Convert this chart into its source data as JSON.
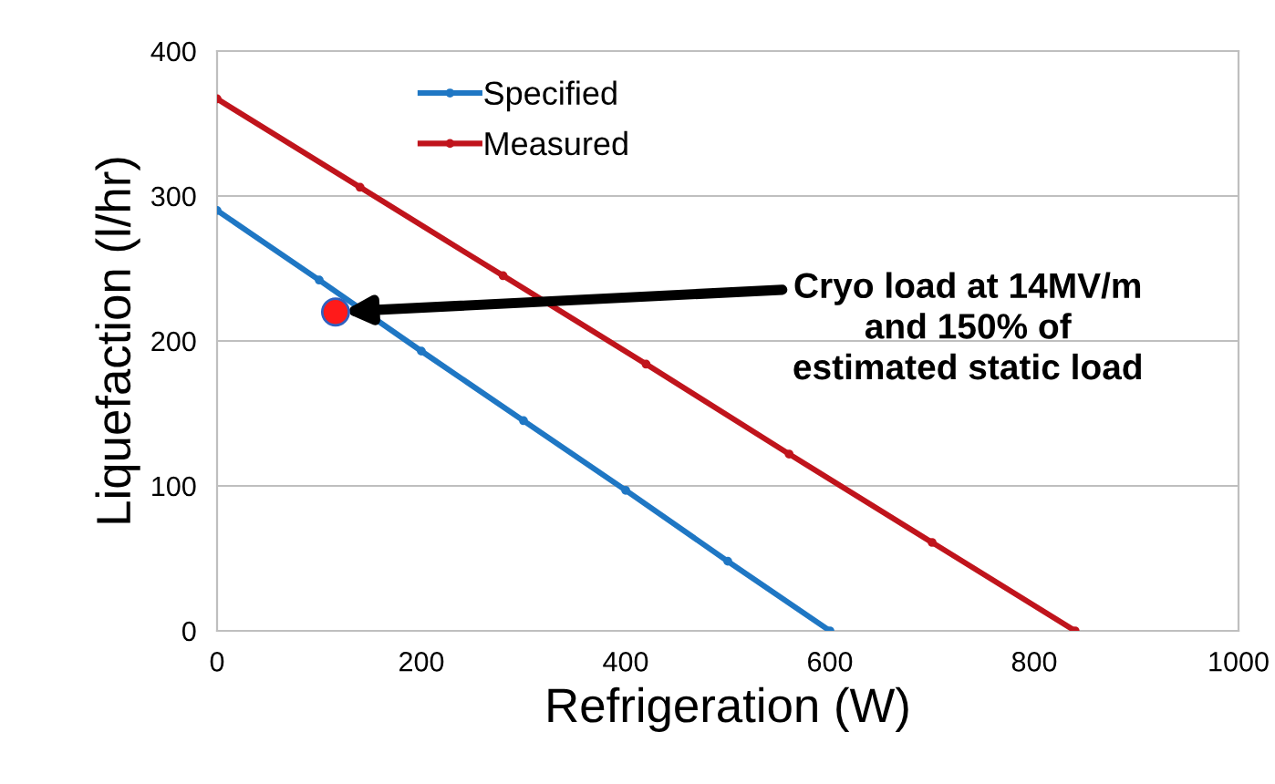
{
  "chart_data": {
    "type": "line",
    "xlabel": "Refrigeration (W)",
    "ylabel": "Liquefaction (l/hr)",
    "xlim": [
      0,
      1000
    ],
    "ylim": [
      0,
      400
    ],
    "xticks": [
      0,
      200,
      400,
      600,
      800,
      1000
    ],
    "yticks": [
      0,
      100,
      200,
      300,
      400
    ],
    "grid": "y",
    "legend": "top left",
    "marker": "circle",
    "line_style": "solid",
    "series": [
      {
        "name": "Specified",
        "color": "#1f77c4",
        "x": [
          0,
          100,
          200,
          300,
          400,
          500,
          600
        ],
        "values": [
          290,
          242,
          193,
          145,
          97,
          48,
          0
        ]
      },
      {
        "name": "Measured",
        "color": "#c0141c",
        "x": [
          0,
          140,
          280,
          420,
          560,
          700,
          840
        ],
        "values": [
          367,
          306,
          245,
          184,
          122,
          61,
          0
        ]
      },
      {
        "type": "scatter",
        "color": "#ff1a1a",
        "x": [
          116
        ],
        "values": [
          220
        ]
      }
    ],
    "annotations": [
      "Cryo load at 14MV/m\nand 150% of\nestimated static load"
    ]
  }
}
